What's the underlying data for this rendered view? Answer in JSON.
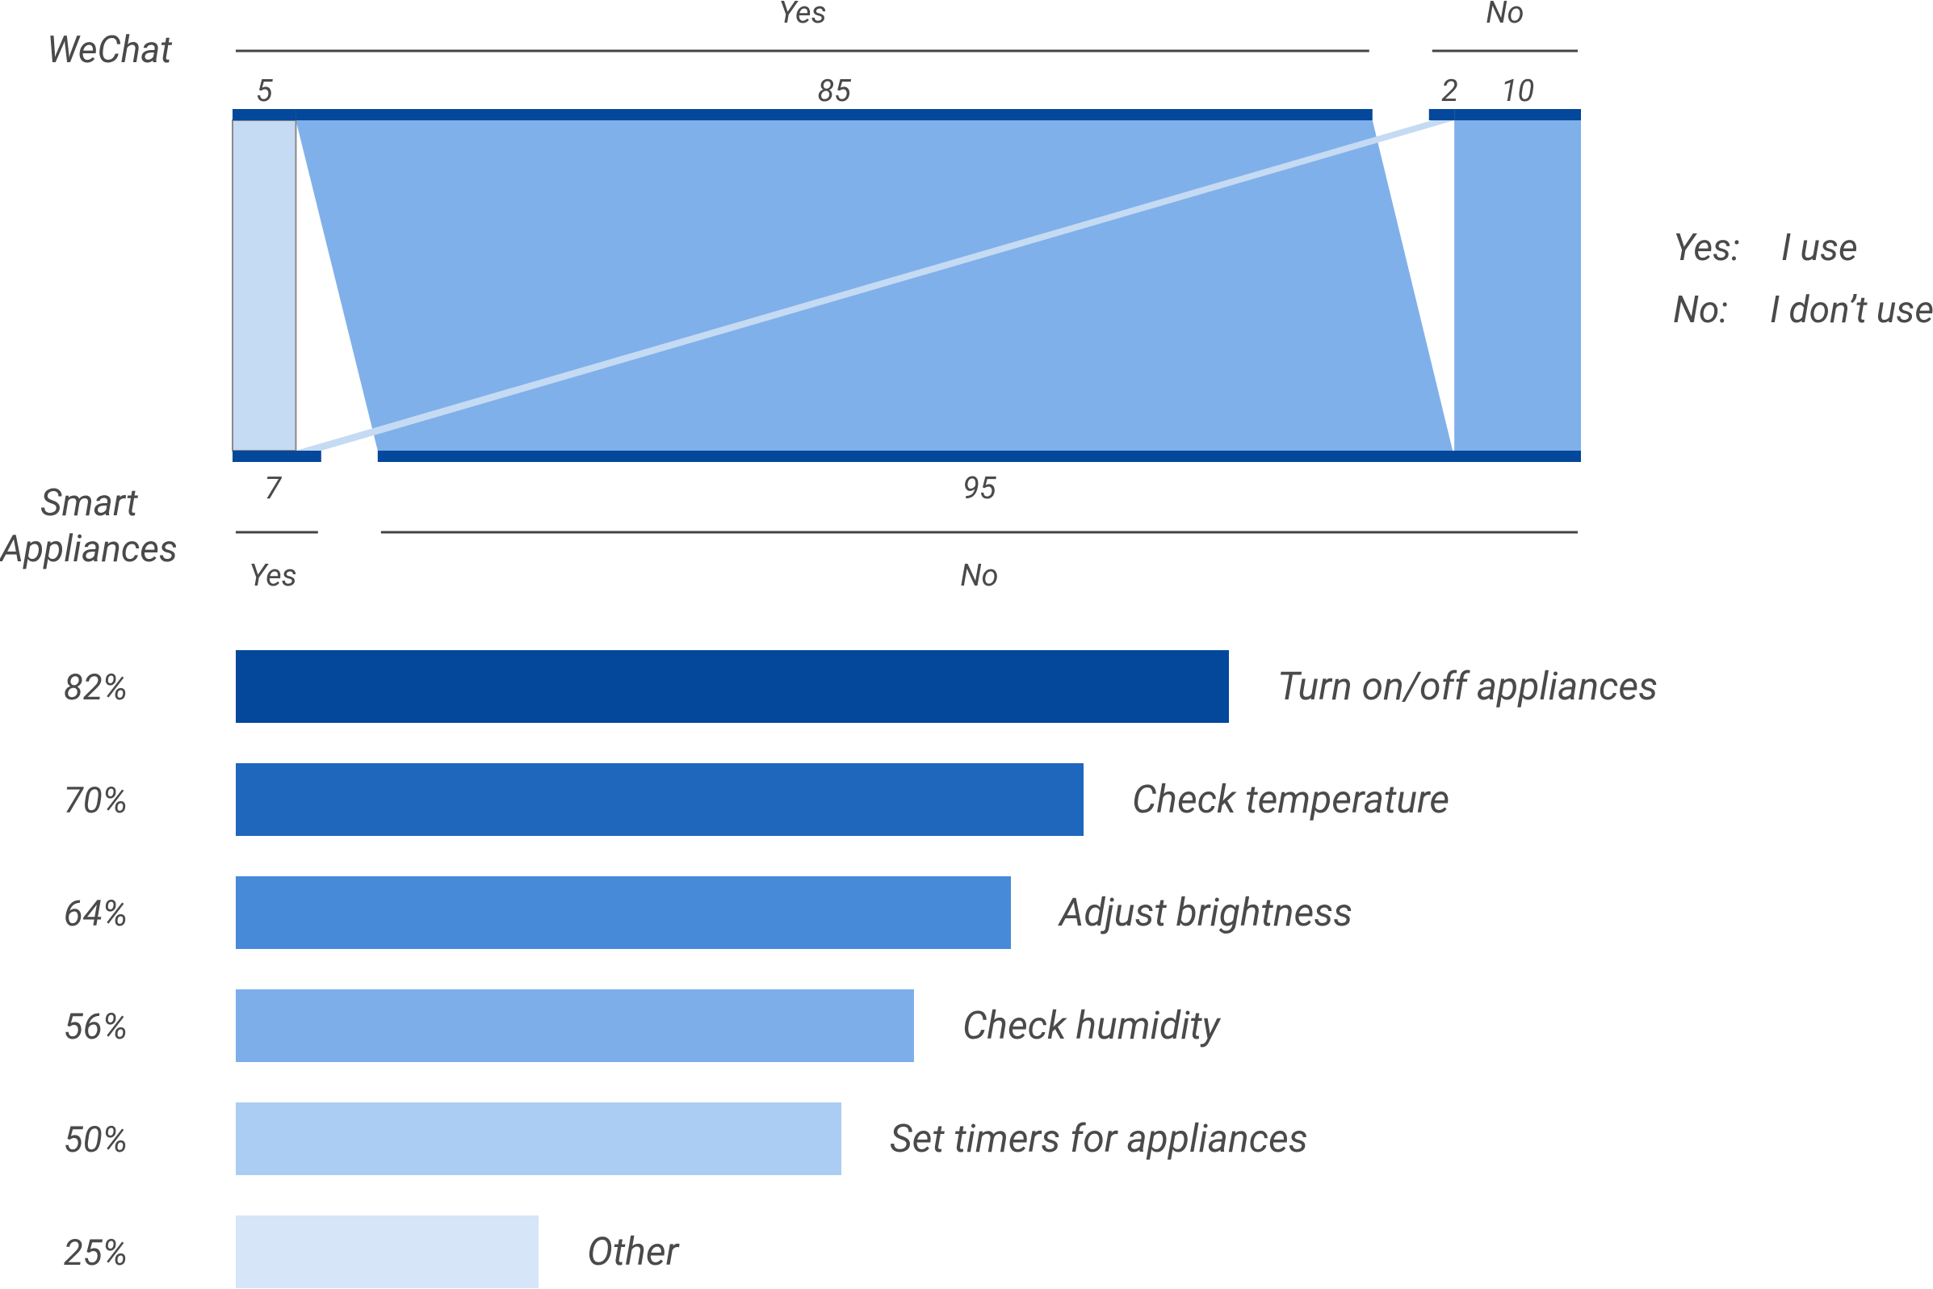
{
  "colors": {
    "bar_dark": "#03489A",
    "flow_main": "#80B0EA",
    "flow_light": "#C5DAF3",
    "rule": "#444444",
    "text": "#4a4a4a",
    "bars": [
      "#03489A",
      "#1F66BD",
      "#468AD8",
      "#7EAEEA",
      "#ABCDF3",
      "#D6E5F7"
    ]
  },
  "chart_data": [
    {
      "type": "alluvial",
      "top_axis": {
        "label": "WeChat",
        "groups": [
          {
            "name": "Yes",
            "segments": [
              5,
              85
            ]
          },
          {
            "name": "No",
            "segments": [
              2,
              10
            ]
          }
        ]
      },
      "bottom_axis": {
        "label_line1": "Smart",
        "label_line2": "Appliances",
        "groups": [
          {
            "name": "Yes",
            "value": 7
          },
          {
            "name": "No",
            "value": 95
          }
        ]
      },
      "flows": [
        {
          "from": "WeChat Yes",
          "to": "Smart Appliances Yes",
          "value": 5
        },
        {
          "from": "WeChat Yes",
          "to": "Smart Appliances No",
          "value": 85
        },
        {
          "from": "WeChat No",
          "to": "Smart Appliances Yes",
          "value": 2
        },
        {
          "from": "WeChat No",
          "to": "Smart Appliances No",
          "value": 10
        }
      ],
      "legend": [
        {
          "key": "Yes:",
          "text": "I use"
        },
        {
          "key": "No:",
          "text": "I don’t use"
        }
      ]
    },
    {
      "type": "bar",
      "orientation": "horizontal",
      "xlim": [
        0,
        100
      ],
      "categories": [
        "Turn on/off appliances",
        "Check temperature",
        "Adjust brightness",
        "Check humidity",
        "Set timers for appliances",
        "Other"
      ],
      "values": [
        82,
        70,
        64,
        56,
        50,
        25
      ],
      "value_labels": [
        "82%",
        "70%",
        "64%",
        "56%",
        "50%",
        "25%"
      ]
    }
  ]
}
